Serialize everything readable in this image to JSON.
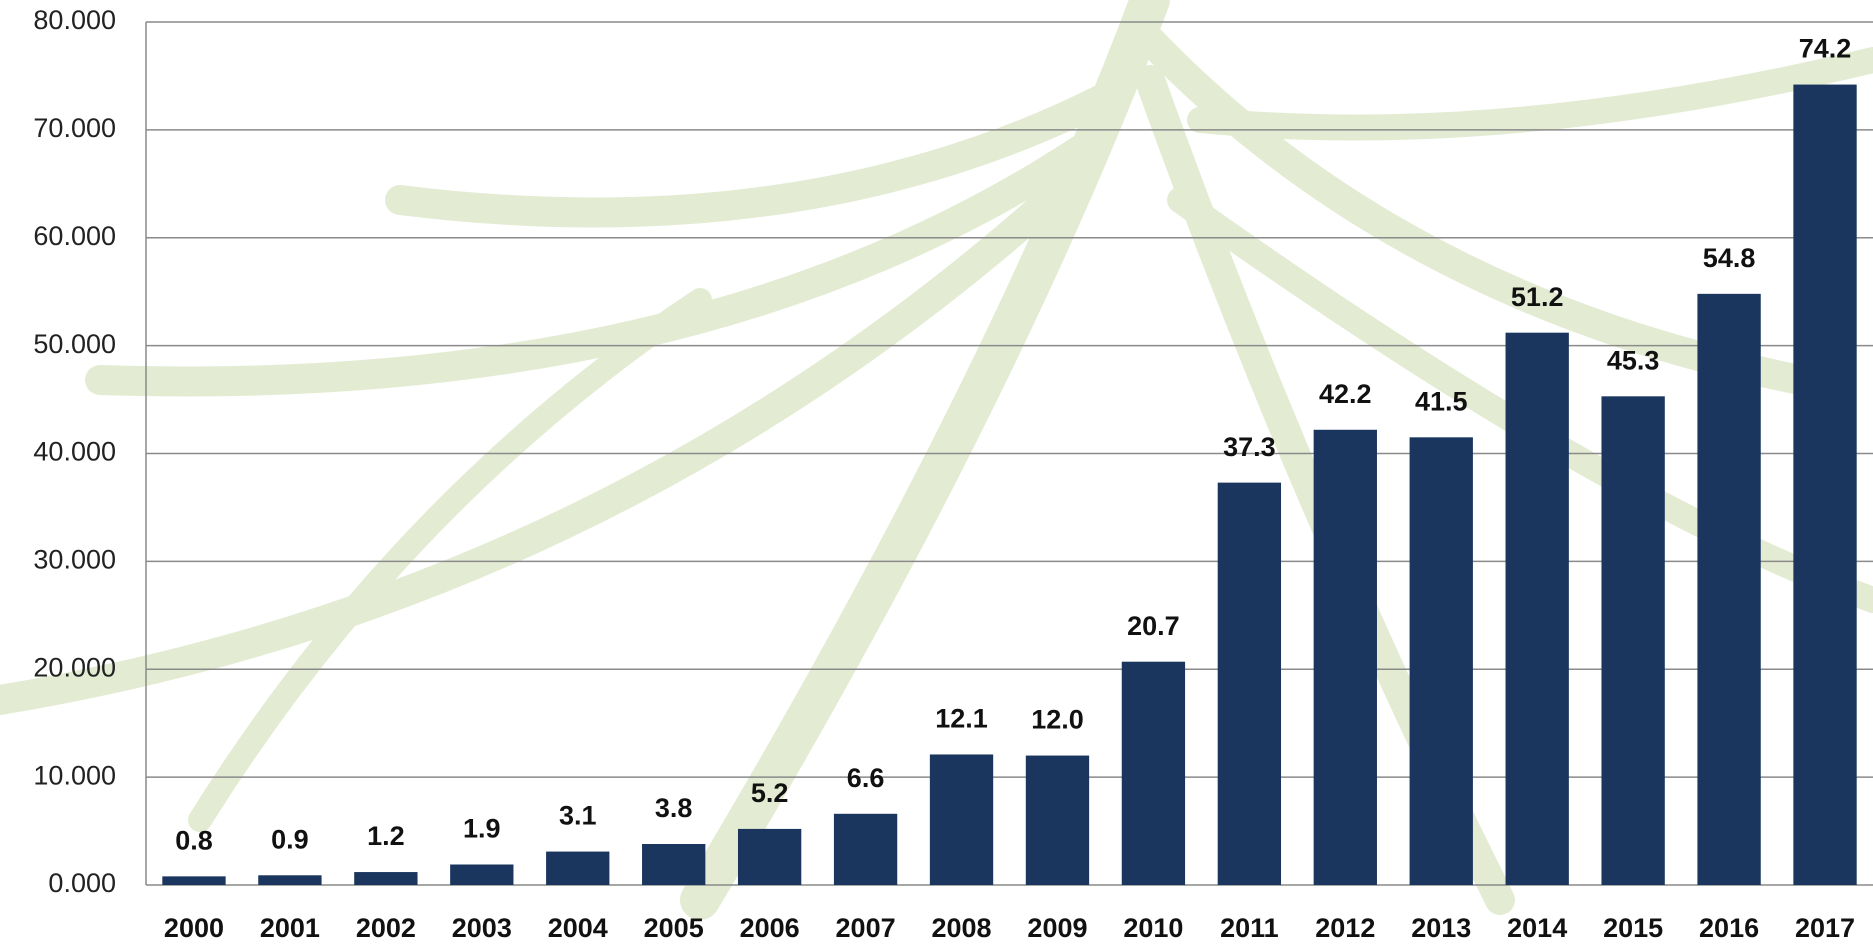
{
  "chart_data": {
    "type": "bar",
    "categories": [
      "2000",
      "2001",
      "2002",
      "2003",
      "2004",
      "2005",
      "2006",
      "2007",
      "2008",
      "2009",
      "2010",
      "2011",
      "2012",
      "2013",
      "2014",
      "2015",
      "2016",
      "2017"
    ],
    "values": [
      0.8,
      0.9,
      1.2,
      1.9,
      3.1,
      3.8,
      5.2,
      6.6,
      12.1,
      12,
      20.7,
      37.3,
      42.2,
      41.5,
      51.2,
      45.3,
      54.8,
      74.2
    ],
    "value_labels": [
      "0.8",
      "0.9",
      "1.2",
      "1.9",
      "3.1",
      "3.8",
      "5.2",
      "6.6",
      "12.1",
      "12.0",
      "20.7",
      "37.3",
      "42.2",
      "41.5",
      "51.2",
      "45.3",
      "54.8",
      "74.2"
    ],
    "color": "#1a355e",
    "ylim": [
      0,
      80
    ],
    "yticks": [
      {
        "value": 0,
        "label": "0.000"
      },
      {
        "value": 10,
        "label": "10.000"
      },
      {
        "value": 20,
        "label": "20.000"
      },
      {
        "value": 30,
        "label": "30.000"
      },
      {
        "value": 40,
        "label": "40.000"
      },
      {
        "value": 50,
        "label": "50.000"
      },
      {
        "value": 60,
        "label": "60.000"
      },
      {
        "value": 70,
        "label": "70.000"
      },
      {
        "value": 80,
        "label": "80.000"
      }
    ],
    "grid": true
  }
}
